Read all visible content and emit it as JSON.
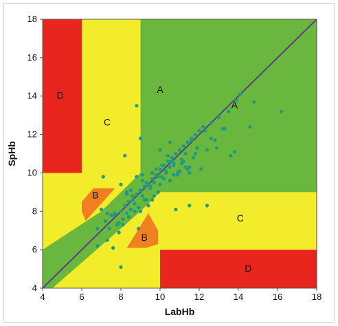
{
  "chart_data": {
    "type": "scatter",
    "title": "",
    "xlabel": "LabHb",
    "ylabel": "SpHb",
    "xlim": [
      4,
      18
    ],
    "ylim": [
      4,
      18
    ],
    "x_ticks": [
      "4",
      "6",
      "8",
      "10",
      "12",
      "14",
      "16",
      "18"
    ],
    "y_ticks": [
      "4",
      "6",
      "8",
      "10",
      "12",
      "14",
      "16",
      "18"
    ],
    "grid": false,
    "legend": "none",
    "colors": {
      "zone_A": "#6ab73e",
      "zone_B": "#f07f22",
      "zone_C": "#f3ec2a",
      "zone_D": "#e8261e",
      "points": "#1f9a86",
      "identity_line": "#5b3f86",
      "axes": "#555555"
    },
    "zone_labels": [
      {
        "text": "A",
        "x": 10.0,
        "y": 14.3
      },
      {
        "text": "A",
        "x": 13.8,
        "y": 13.5
      },
      {
        "text": "B",
        "x": 6.7,
        "y": 8.8
      },
      {
        "text": "B",
        "x": 9.2,
        "y": 6.6
      },
      {
        "text": "C",
        "x": 7.3,
        "y": 12.6
      },
      {
        "text": "C",
        "x": 14.1,
        "y": 7.6
      },
      {
        "text": "D",
        "x": 4.9,
        "y": 14.0
      },
      {
        "text": "D",
        "x": 14.5,
        "y": 5.0
      }
    ],
    "identity_line": {
      "x": [
        4,
        18
      ],
      "y": [
        4,
        18
      ]
    },
    "zones": {
      "D": [
        [
          [
            4,
            18
          ],
          [
            6,
            18
          ],
          [
            6,
            10
          ],
          [
            4,
            10
          ]
        ],
        [
          [
            10,
            4
          ],
          [
            18,
            4
          ],
          [
            18,
            6
          ],
          [
            10,
            6
          ]
        ]
      ],
      "C": [
        [
          [
            6,
            18
          ],
          [
            9,
            18
          ],
          [
            9,
            10
          ],
          [
            6,
            10
          ]
        ],
        [
          [
            4,
            10
          ],
          [
            9,
            10
          ],
          [
            7,
            8
          ],
          [
            4,
            6
          ]
        ],
        [
          [
            8,
            4
          ],
          [
            10,
            4
          ],
          [
            10,
            6
          ],
          [
            18,
            6
          ],
          [
            18,
            9
          ],
          [
            10,
            9
          ],
          [
            8,
            6
          ]
        ]
      ],
      "A": [
        [
          [
            9,
            18
          ],
          [
            18,
            18
          ],
          [
            18,
            9
          ],
          [
            10,
            9
          ],
          [
            9,
            8
          ],
          [
            4.5,
            4
          ],
          [
            4,
            4
          ],
          [
            4,
            6
          ],
          [
            9,
            11
          ]
        ]
      ],
      "B": [
        [
          [
            6,
            8
          ],
          [
            6,
            8.5
          ],
          [
            6.6,
            9.2
          ],
          [
            7.7,
            9.2
          ],
          [
            6.2,
            7.5
          ]
        ],
        [
          [
            9.3,
            6.1
          ],
          [
            9.9,
            6.3
          ],
          [
            9.9,
            7.0
          ],
          [
            9.4,
            7.9
          ],
          [
            8.3,
            6.1
          ]
        ]
      ]
    },
    "series": [
      {
        "x": [
          7.0,
          6.8,
          7.2,
          7.5,
          7.3,
          7.8,
          7.6,
          8.0,
          7.9,
          8.2,
          8.1,
          8.4,
          8.3,
          8.6,
          8.5,
          8.8,
          8.7,
          9.0,
          8.9,
          9.2,
          9.1,
          9.4,
          9.3,
          9.6,
          9.5,
          9.8,
          9.7,
          10.0,
          9.9,
          10.2,
          10.1,
          10.4,
          10.3,
          10.6,
          10.5,
          10.8,
          10.7,
          11.0,
          10.9,
          11.2,
          11.1,
          11.4,
          11.3,
          11.6,
          11.5,
          11.8,
          11.7,
          12.0,
          11.9,
          12.2,
          12.4,
          12.6,
          12.8,
          13.0,
          13.2,
          13.6,
          13.9,
          14.1,
          14.6,
          14.8,
          16.2,
          8.8,
          9.0,
          8.2,
          8.0,
          7.1,
          7.3,
          6.8,
          7.6,
          8.9,
          9.6,
          10.2,
          10.8,
          11.5,
          12.4,
          8.3,
          8.7,
          9.1,
          9.4,
          9.8,
          10.0,
          10.3,
          10.5,
          10.9,
          11.1,
          11.3,
          7.7,
          8.1,
          8.4,
          8.6,
          9.2,
          9.5,
          9.9,
          10.1,
          10.6,
          11.0,
          11.4,
          11.8,
          12.1,
          12.6,
          13.3,
          13.8,
          8.0,
          8.5,
          9.0,
          9.3,
          9.7,
          10.4,
          10.7,
          11.2,
          12.3,
          7.4,
          7.9,
          8.3,
          8.8,
          9.1,
          9.6,
          10.0,
          10.5,
          11.6,
          12.9,
          13.5,
          10.7,
          11.5
        ],
        "y": [
          8.1,
          6.2,
          7.5,
          7.8,
          7.9,
          7.3,
          7.8,
          8.0,
          7.4,
          8.3,
          7.6,
          8.5,
          7.9,
          8.6,
          8.1,
          8.9,
          8.4,
          9.1,
          8.2,
          9.3,
          8.8,
          9.4,
          8.6,
          9.7,
          9.2,
          9.9,
          9.5,
          10.2,
          9.0,
          10.4,
          9.8,
          10.6,
          10.1,
          10.8,
          10.3,
          11.0,
          10.5,
          11.2,
          10.0,
          11.4,
          10.7,
          11.6,
          11.0,
          11.8,
          10.3,
          12.0,
          10.8,
          12.2,
          11.3,
          12.4,
          11.2,
          12.6,
          11.7,
          12.9,
          12.3,
          10.9,
          13.8,
          14.1,
          12.4,
          13.7,
          13.2,
          13.5,
          11.8,
          10.9,
          5.1,
          9.8,
          6.5,
          7.1,
          6.1,
          7.1,
          8.6,
          9.7,
          8.1,
          8.3,
          8.3,
          8.9,
          8.0,
          9.6,
          8.3,
          10.2,
          9.4,
          10.0,
          9.6,
          9.9,
          10.5,
          10.3,
          7.9,
          7.3,
          7.7,
          8.8,
          8.6,
          9.3,
          9.8,
          10.4,
          10.6,
          10.1,
          10.2,
          11.0,
          10.2,
          11.8,
          12.3,
          11.1,
          9.4,
          9.1,
          8.0,
          9.5,
          8.8,
          10.9,
          9.9,
          10.6,
          12.2,
          7.1,
          6.9,
          9.0,
          9.8,
          9.9,
          10.0,
          11.2,
          11.6,
          11.7,
          11.3,
          13.2,
          10.4,
          10.0
        ]
      }
    ]
  }
}
